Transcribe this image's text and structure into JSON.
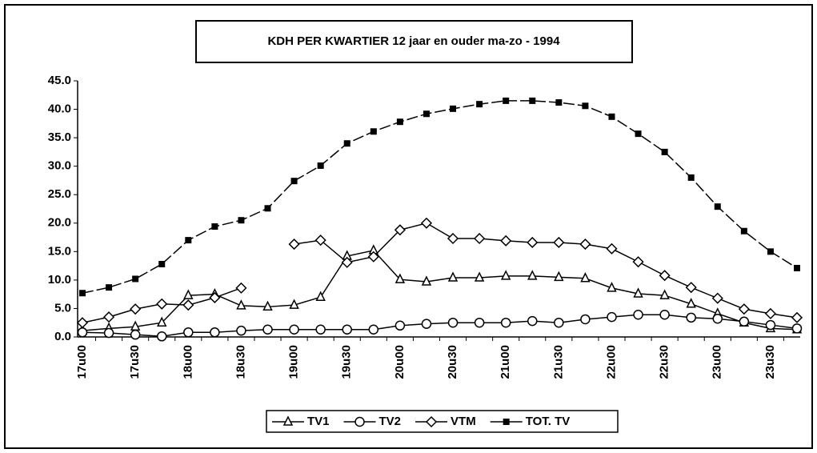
{
  "chart_data": {
    "type": "line",
    "title": "KDH PER KWARTIER 12 jaar en ouder ma-zo - 1994",
    "categories": [
      "17u00",
      null,
      "17u30",
      null,
      "18u00",
      null,
      "18u30",
      null,
      "19u00",
      null,
      "19u30",
      null,
      "20u00",
      null,
      "20u30",
      null,
      "21u00",
      null,
      "21u30",
      null,
      "22u00",
      null,
      "22u30",
      null,
      "23u00",
      null,
      "23u30",
      null
    ],
    "series": [
      {
        "name": "TV1",
        "color": "#000000",
        "marker": "triangle",
        "values": [
          1.1,
          1.5,
          1.8,
          2.5,
          7.3,
          7.5,
          5.5,
          5.3,
          5.6,
          7.0,
          14.2,
          15.2,
          10.1,
          9.7,
          10.4,
          10.4,
          10.7,
          10.7,
          10.5,
          10.3,
          8.6,
          7.6,
          7.3,
          5.8,
          4.1,
          2.5,
          1.5,
          1.3
        ]
      },
      {
        "name": "TV2",
        "color": "#000000",
        "marker": "circle",
        "values": [
          0.8,
          0.7,
          0.4,
          0.1,
          0.8,
          0.8,
          1.1,
          1.3,
          1.3,
          1.3,
          1.3,
          1.3,
          2.0,
          2.3,
          2.5,
          2.5,
          2.5,
          2.8,
          2.5,
          3.1,
          3.5,
          3.9,
          3.9,
          3.4,
          3.2,
          2.7,
          2.1,
          1.5
        ]
      },
      {
        "name": "VTM",
        "color": "#000000",
        "marker": "diamond",
        "values": [
          2.5,
          3.5,
          4.9,
          5.8,
          5.6,
          6.9,
          8.6,
          null,
          16.3,
          17.0,
          13.1,
          14.1,
          18.8,
          20.0,
          17.3,
          17.3,
          16.9,
          16.6,
          16.6,
          16.3,
          15.5,
          13.2,
          10.8,
          8.7,
          6.8,
          4.9,
          4.1,
          3.4
        ]
      },
      {
        "name": "TOT. TV",
        "color": "#000000",
        "marker": "square",
        "values": [
          7.7,
          8.7,
          10.2,
          12.8,
          17.0,
          19.4,
          20.5,
          22.6,
          27.4,
          30.1,
          34.0,
          36.1,
          37.8,
          39.2,
          40.1,
          40.9,
          41.5,
          41.5,
          41.2,
          40.6,
          38.7,
          35.7,
          32.5,
          28.0,
          22.9,
          18.6,
          15.0,
          12.1
        ]
      }
    ],
    "ylim": [
      0,
      45
    ],
    "yticks": [
      {
        "value": 0,
        "label": "0.0"
      },
      {
        "value": 5,
        "label": "5.0"
      },
      {
        "value": 10,
        "label": "10.0"
      },
      {
        "value": 15,
        "label": "15.0"
      },
      {
        "value": 20,
        "label": "20.0"
      },
      {
        "value": 25,
        "label": "25.0"
      },
      {
        "value": 30,
        "label": "30.0"
      },
      {
        "value": 35,
        "label": "35.0"
      },
      {
        "value": 40,
        "label": "40.0"
      },
      {
        "value": 45,
        "label": "45.0"
      }
    ],
    "grid": false,
    "legend": "bottom"
  }
}
